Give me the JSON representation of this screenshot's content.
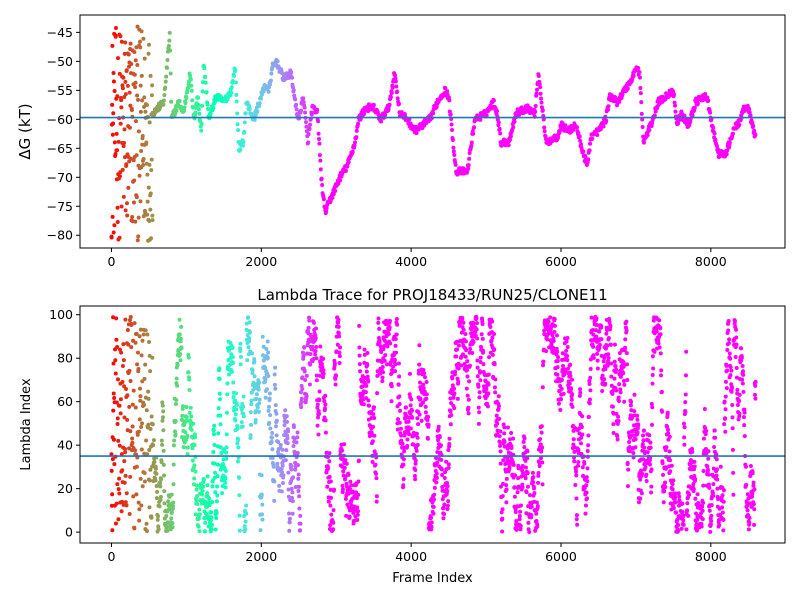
{
  "chart_data": [
    {
      "type": "scatter",
      "title": "",
      "xlabel": "",
      "ylabel": "ΔG (kT)",
      "xlim": [
        -420,
        8990
      ],
      "ylim": [
        -82.2,
        -42.0
      ],
      "xticks": [
        0,
        2000,
        4000,
        6000,
        8000
      ],
      "xtick_labels": [
        "0",
        "2000",
        "4000",
        "6000",
        "8000"
      ],
      "yticks": [
        -80,
        -75,
        -70,
        -65,
        -60,
        -55,
        -50,
        -45
      ],
      "ytick_labels": [
        "−80",
        "−75",
        "−70",
        "−65",
        "−60",
        "−55",
        "−50",
        "−45"
      ],
      "hline": -59.7,
      "hline_color": "#1f77b4",
      "colormap": "rainbow (reversed: early frames red, late frames violet)",
      "n_frames": 8600,
      "early_noise_range": [
        0,
        550
      ],
      "early_noise_y_range": [
        -81,
        -44
      ],
      "trace_points": [
        [
          550,
          -59
        ],
        [
          700,
          -57
        ],
        [
          780,
          -45
        ],
        [
          800,
          -60
        ],
        [
          900,
          -57
        ],
        [
          960,
          -59
        ],
        [
          1050,
          -52
        ],
        [
          1100,
          -60
        ],
        [
          1150,
          -56
        ],
        [
          1200,
          -62
        ],
        [
          1230,
          -50
        ],
        [
          1300,
          -60
        ],
        [
          1400,
          -56
        ],
        [
          1500,
          -57
        ],
        [
          1600,
          -55
        ],
        [
          1650,
          -51
        ],
        [
          1700,
          -65
        ],
        [
          1760,
          -64
        ],
        [
          1800,
          -57
        ],
        [
          1900,
          -60
        ],
        [
          2000,
          -56
        ],
        [
          2050,
          -54
        ],
        [
          2100,
          -55
        ],
        [
          2150,
          -51
        ],
        [
          2200,
          -50
        ],
        [
          2300,
          -53
        ],
        [
          2400,
          -52
        ],
        [
          2450,
          -57
        ],
        [
          2500,
          -60
        ],
        [
          2560,
          -56
        ],
        [
          2620,
          -64
        ],
        [
          2680,
          -58
        ],
        [
          2750,
          -59
        ],
        [
          2800,
          -70
        ],
        [
          2850,
          -76
        ],
        [
          2950,
          -73
        ],
        [
          3050,
          -70
        ],
        [
          3150,
          -68
        ],
        [
          3250,
          -64
        ],
        [
          3300,
          -60
        ],
        [
          3400,
          -58
        ],
        [
          3500,
          -58
        ],
        [
          3600,
          -60
        ],
        [
          3700,
          -58
        ],
        [
          3780,
          -52
        ],
        [
          3850,
          -59
        ],
        [
          3950,
          -60
        ],
        [
          4050,
          -62
        ],
        [
          4150,
          -61
        ],
        [
          4250,
          -60
        ],
        [
          4350,
          -57
        ],
        [
          4450,
          -55
        ],
        [
          4500,
          -56
        ],
        [
          4600,
          -69
        ],
        [
          4750,
          -69
        ],
        [
          4850,
          -60
        ],
        [
          5000,
          -59
        ],
        [
          5100,
          -57
        ],
        [
          5150,
          -59
        ],
        [
          5200,
          -64
        ],
        [
          5300,
          -64
        ],
        [
          5400,
          -59
        ],
        [
          5550,
          -58
        ],
        [
          5650,
          -59
        ],
        [
          5700,
          -52
        ],
        [
          5800,
          -64
        ],
        [
          5950,
          -63
        ],
        [
          6000,
          -61
        ],
        [
          6100,
          -62
        ],
        [
          6200,
          -61
        ],
        [
          6300,
          -66
        ],
        [
          6350,
          -68
        ],
        [
          6400,
          -63
        ],
        [
          6500,
          -62
        ],
        [
          6600,
          -60
        ],
        [
          6650,
          -56
        ],
        [
          6750,
          -57
        ],
        [
          6850,
          -55
        ],
        [
          6950,
          -53
        ],
        [
          7000,
          -51
        ],
        [
          7050,
          -52
        ],
        [
          7100,
          -64
        ],
        [
          7200,
          -61
        ],
        [
          7300,
          -57
        ],
        [
          7400,
          -56
        ],
        [
          7500,
          -55
        ],
        [
          7550,
          -61
        ],
        [
          7600,
          -59
        ],
        [
          7700,
          -61
        ],
        [
          7800,
          -57
        ],
        [
          7950,
          -56
        ],
        [
          8000,
          -60
        ],
        [
          8100,
          -66
        ],
        [
          8200,
          -66
        ],
        [
          8300,
          -62
        ],
        [
          8400,
          -60
        ],
        [
          8450,
          -58
        ],
        [
          8500,
          -58
        ],
        [
          8550,
          -61
        ],
        [
          8600,
          -63
        ]
      ],
      "trace_color": "#6b2fff"
    },
    {
      "type": "scatter",
      "title": "Lambda Trace for PROJ18433/RUN25/CLONE11",
      "xlabel": "Frame Index",
      "ylabel": "Lambda Index",
      "xlim": [
        -420,
        8990
      ],
      "ylim": [
        -5,
        104
      ],
      "xticks": [
        0,
        2000,
        4000,
        6000,
        8000
      ],
      "xtick_labels": [
        "0",
        "2000",
        "4000",
        "6000",
        "8000"
      ],
      "yticks": [
        0,
        20,
        40,
        60,
        80,
        100
      ],
      "ytick_labels": [
        "0",
        "20",
        "40",
        "60",
        "80",
        "100"
      ],
      "hline": 35,
      "hline_color": "#1f77b4",
      "colormap": "rainbow (reversed: early frames red, late frames violet)",
      "n_frames": 8600,
      "lambda_range": [
        0,
        99
      ]
    }
  ]
}
